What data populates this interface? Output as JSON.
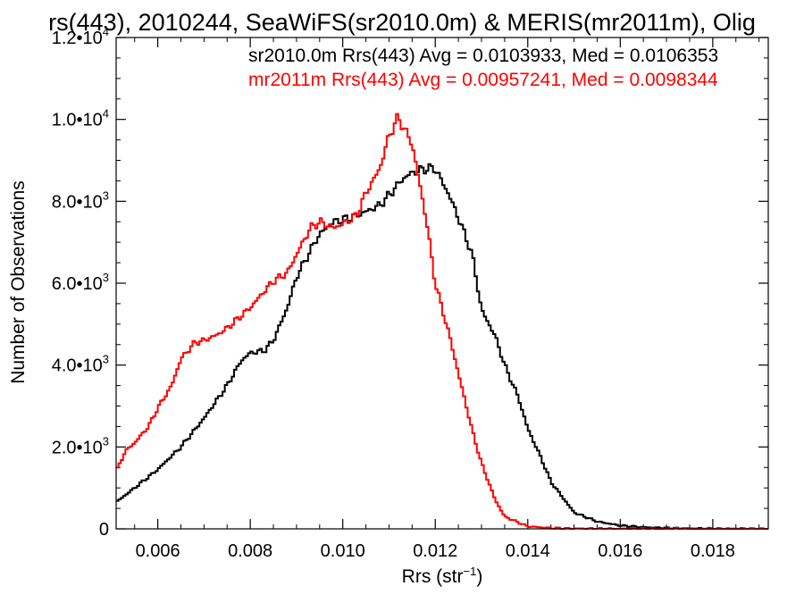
{
  "chart_data": {
    "type": "line",
    "title": "rs(443), 2010244, SeaWiFS(sr2010.0m) & MERIS(mr2011m), Olig",
    "xlabel": "Rrs (str",
    "xlabel_sup": "−1",
    "xlabel_end": ")",
    "ylabel": "Number of Observations",
    "xlim": [
      0.0051,
      0.0192
    ],
    "ylim": [
      0,
      12000
    ],
    "x_ticks": [
      {
        "value": 0.006,
        "label": "0.006"
      },
      {
        "value": 0.008,
        "label": "0.008"
      },
      {
        "value": 0.01,
        "label": "0.010"
      },
      {
        "value": 0.012,
        "label": "0.012"
      },
      {
        "value": 0.014,
        "label": "0.014"
      },
      {
        "value": 0.016,
        "label": "0.016"
      },
      {
        "value": 0.018,
        "label": "0.018"
      }
    ],
    "y_ticks": [
      {
        "value": 0,
        "label": "0",
        "exp": ""
      },
      {
        "value": 2000,
        "label": "2.0•10",
        "exp": "3"
      },
      {
        "value": 4000,
        "label": "4.0•10",
        "exp": "3"
      },
      {
        "value": 6000,
        "label": "6.0•10",
        "exp": "3"
      },
      {
        "value": 8000,
        "label": "8.0•10",
        "exp": "3"
      },
      {
        "value": 10000,
        "label": "1.0•10",
        "exp": "4"
      },
      {
        "value": 12000,
        "label": "1.2•10",
        "exp": "4"
      }
    ],
    "legend": [
      {
        "text": "sr2010.0m Rrs(443) Avg = 0.0103933, Med = 0.0106353",
        "color": "#000000"
      },
      {
        "text": "mr2011m Rrs(443) Avg = 0.00957241, Med = 0.0098344",
        "color": "#ff0000"
      }
    ],
    "series": [
      {
        "color": "#000000",
        "x": [
          0.0051,
          0.0055,
          0.006,
          0.0065,
          0.007,
          0.0075,
          0.0078,
          0.008,
          0.0083,
          0.0085,
          0.0088,
          0.009,
          0.0093,
          0.0095,
          0.0098,
          0.01,
          0.0103,
          0.0105,
          0.0108,
          0.011,
          0.0113,
          0.0115,
          0.0118,
          0.012,
          0.0123,
          0.0125,
          0.0128,
          0.013,
          0.0133,
          0.0135,
          0.0138,
          0.014,
          0.0143,
          0.0145,
          0.0148,
          0.015,
          0.0155,
          0.016,
          0.0165,
          0.017,
          0.0175,
          0.018,
          0.0185,
          0.0192
        ],
        "y": [
          650,
          1000,
          1450,
          2000,
          2700,
          3500,
          4100,
          4300,
          4350,
          4600,
          5400,
          6150,
          6800,
          7200,
          7500,
          7550,
          7650,
          7750,
          7900,
          8150,
          8550,
          8700,
          8800,
          8800,
          8150,
          7600,
          6700,
          5350,
          4700,
          4000,
          3200,
          2450,
          1700,
          1150,
          700,
          400,
          180,
          80,
          40,
          20,
          10,
          5,
          2,
          0
        ]
      },
      {
        "color": "#ff0000",
        "x": [
          0.0051,
          0.0053,
          0.0055,
          0.0058,
          0.006,
          0.0063,
          0.0065,
          0.0068,
          0.007,
          0.0073,
          0.0075,
          0.0078,
          0.008,
          0.0083,
          0.0085,
          0.0088,
          0.009,
          0.0093,
          0.0095,
          0.0098,
          0.01,
          0.0103,
          0.0105,
          0.0108,
          0.011,
          0.0112,
          0.0115,
          0.0118,
          0.012,
          0.0123,
          0.0125,
          0.0128,
          0.013,
          0.0133,
          0.0135,
          0.014,
          0.0145,
          0.015,
          0.016,
          0.017,
          0.018,
          0.0192
        ],
        "y": [
          1400,
          1900,
          2100,
          2500,
          2950,
          3500,
          4150,
          4550,
          4600,
          4750,
          4900,
          5200,
          5400,
          5800,
          6050,
          6250,
          6700,
          7350,
          7500,
          7350,
          7450,
          7650,
          8200,
          8800,
          9600,
          10050,
          9400,
          7600,
          6000,
          4750,
          3800,
          2400,
          1600,
          700,
          300,
          60,
          20,
          8,
          3,
          1,
          0,
          0
        ]
      }
    ]
  }
}
